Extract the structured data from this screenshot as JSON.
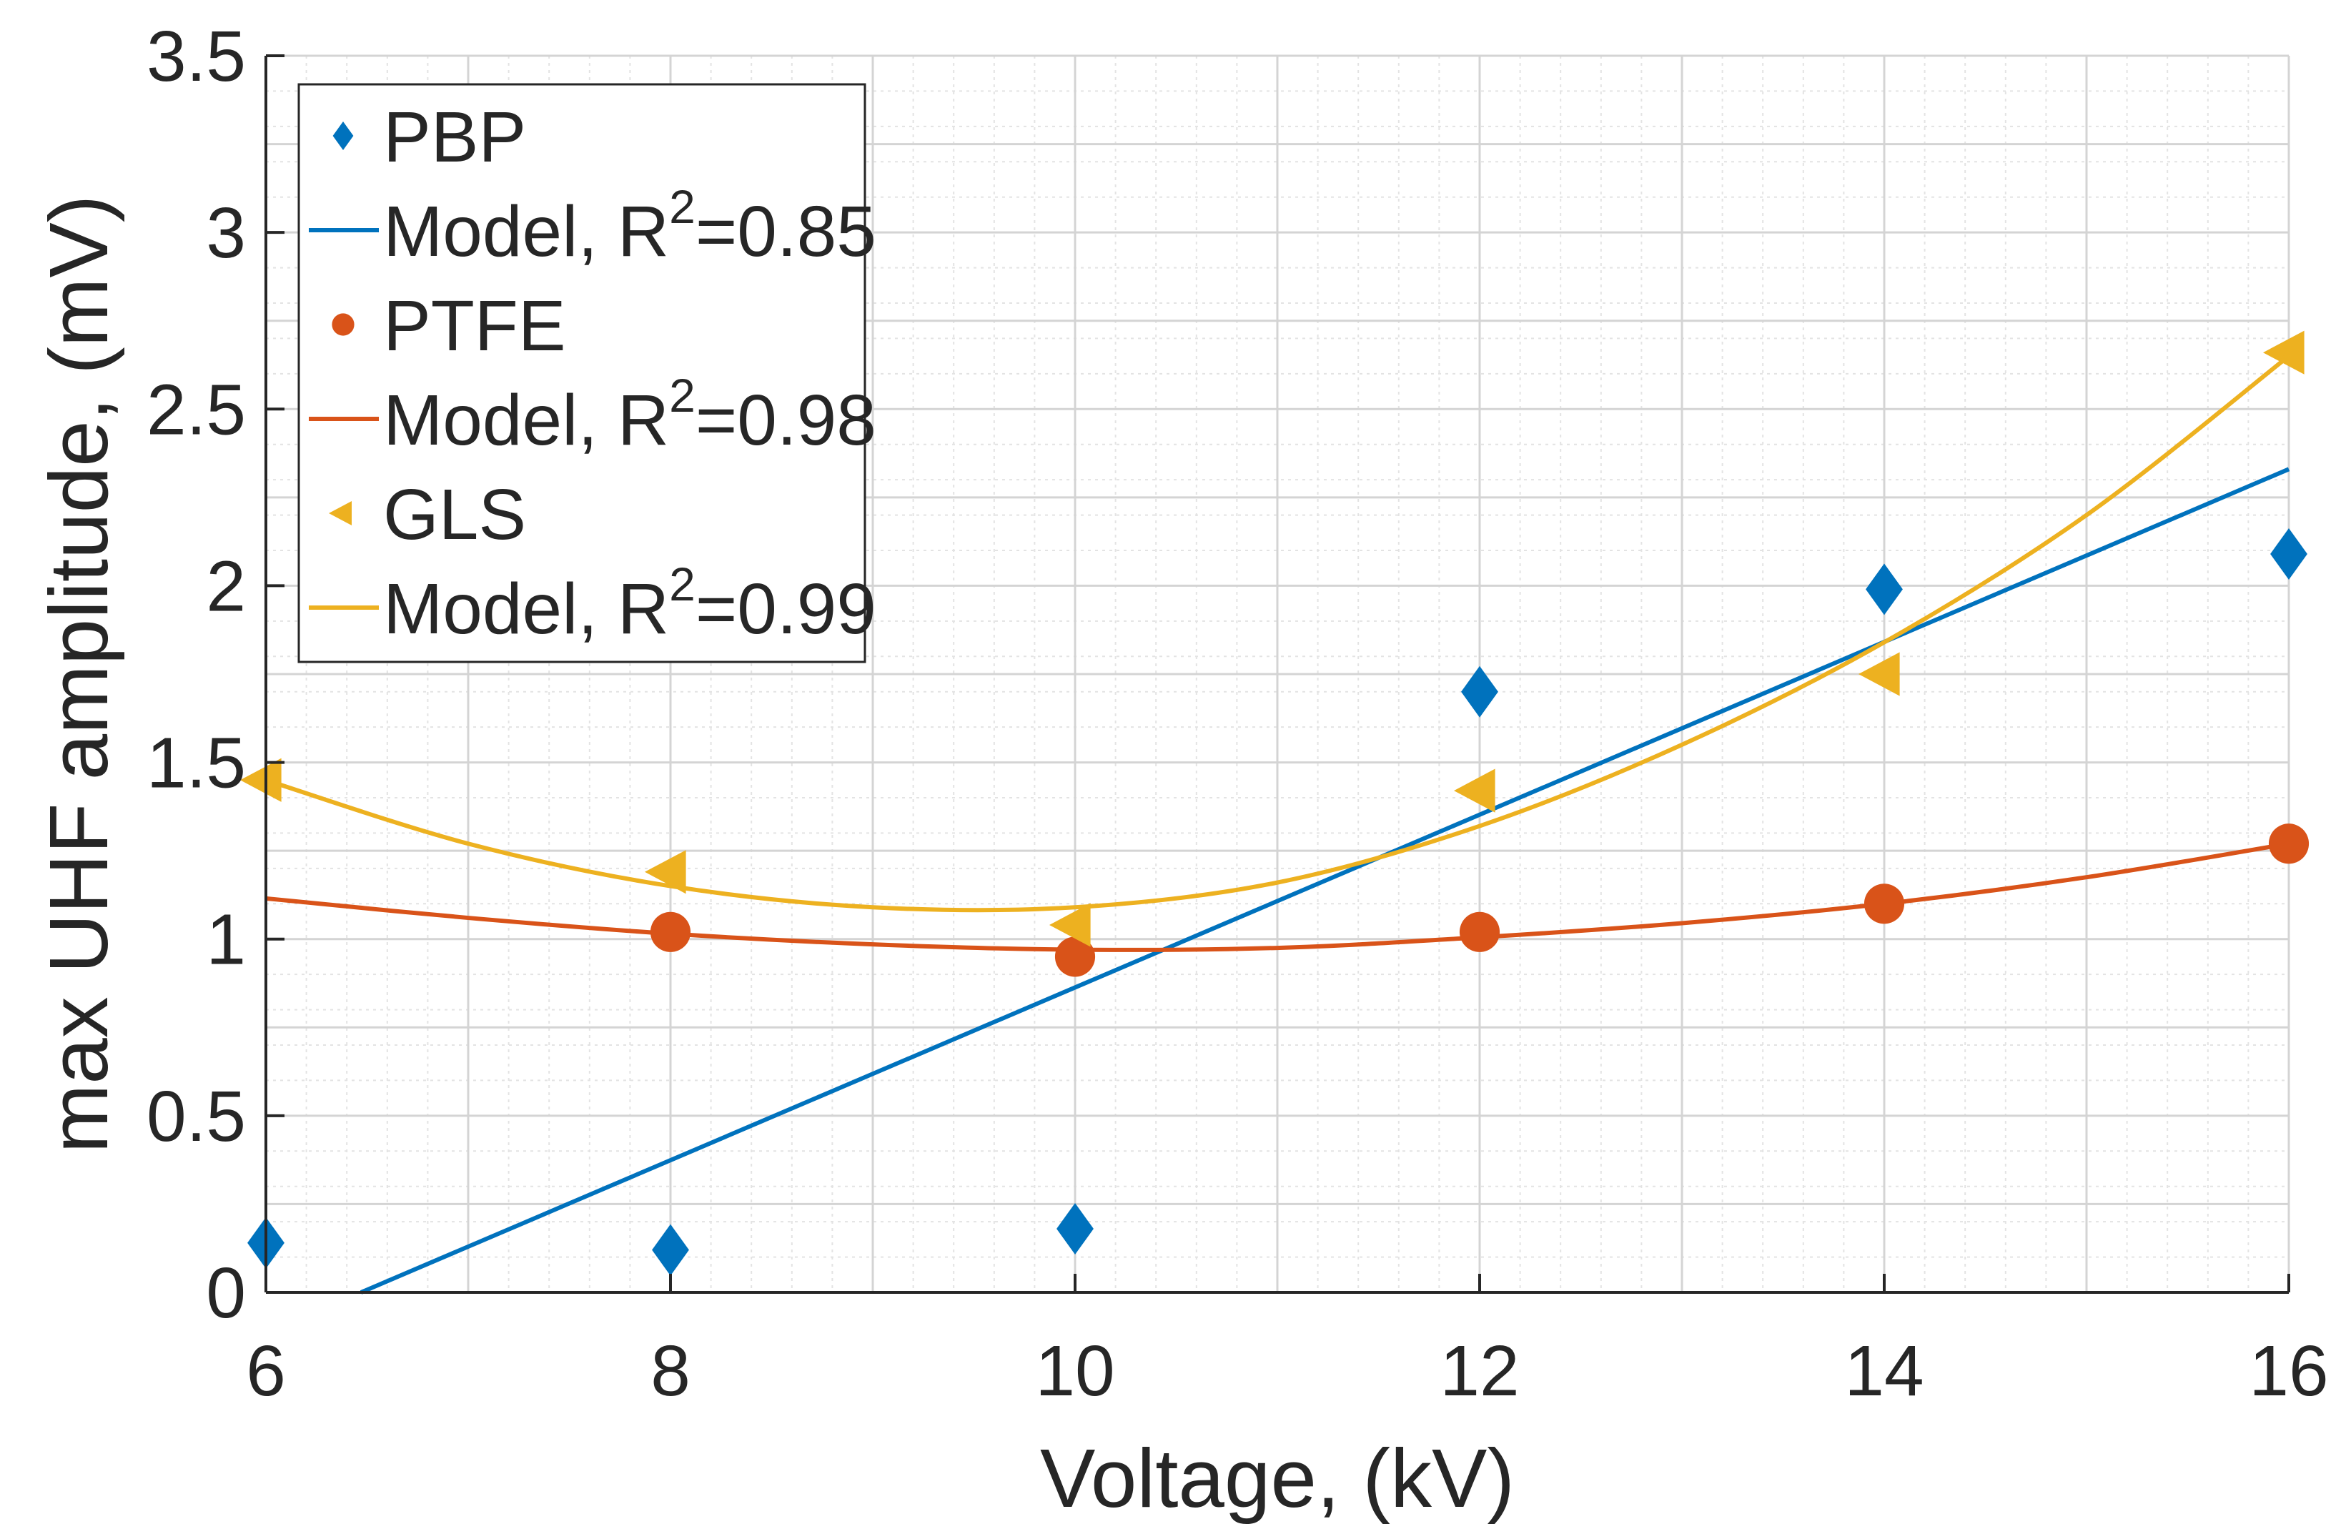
{
  "chart_data": {
    "type": "scatter",
    "title": "",
    "xlabel": "Voltage, (kV)",
    "ylabel": "max UHF amplitude, (mV)",
    "xlim": [
      6,
      16
    ],
    "ylim": [
      0,
      3.5
    ],
    "xticks": [
      6,
      8,
      10,
      12,
      14,
      16
    ],
    "xtick_labels": [
      "6",
      "8",
      "10",
      "12",
      "14",
      "16"
    ],
    "yticks": [
      0,
      0.5,
      1,
      1.5,
      2,
      2.5,
      3,
      3.5
    ],
    "ytick_labels": [
      "0",
      "0.5",
      "1",
      "1.5",
      "2",
      "2.5",
      "3",
      "3.5"
    ],
    "grid": true,
    "minor_grid": true,
    "legend_position": "top-left",
    "series": [
      {
        "name": "PBP",
        "kind": "scatter",
        "marker": "diamond",
        "color": "#0072BD",
        "x": [
          6,
          8,
          10,
          12,
          14,
          16
        ],
        "y": [
          0.14,
          0.12,
          0.18,
          1.7,
          1.99,
          2.09
        ]
      },
      {
        "name": "Model, R2=0.85",
        "legend_main": "Model, R",
        "legend_sup": "2",
        "legend_tail": "=0.85",
        "kind": "line",
        "color": "#0072BD",
        "x": [
          6.47,
          16
        ],
        "y": [
          0,
          2.33
        ]
      },
      {
        "name": "PTFE",
        "kind": "scatter",
        "marker": "circle",
        "color": "#D95319",
        "x": [
          8,
          10,
          12,
          14,
          16
        ],
        "y": [
          1.02,
          0.95,
          1.02,
          1.1,
          1.27
        ]
      },
      {
        "name": "Model, R2=0.98",
        "legend_main": "Model, R",
        "legend_sup": "2",
        "legend_tail": "=0.98",
        "kind": "line",
        "color": "#D95319",
        "x": [
          6,
          7,
          8,
          9,
          10,
          11,
          12,
          13,
          14,
          15,
          16
        ],
        "y": [
          1.115,
          1.06,
          1.015,
          0.985,
          0.97,
          0.975,
          1.005,
          1.045,
          1.1,
          1.175,
          1.27
        ]
      },
      {
        "name": "GLS",
        "kind": "scatter",
        "marker": "triangle-left",
        "color": "#EDB120",
        "x": [
          6,
          8,
          10,
          12,
          14,
          16
        ],
        "y": [
          1.45,
          1.19,
          1.04,
          1.42,
          1.75,
          2.66
        ]
      },
      {
        "name": "Model, R2=0.99",
        "legend_main": "Model, R",
        "legend_sup": "2",
        "legend_tail": "=0.99",
        "kind": "line",
        "color": "#EDB120",
        "x": [
          6,
          7,
          8,
          9,
          10,
          11,
          12,
          13,
          14,
          15,
          16
        ],
        "y": [
          1.45,
          1.27,
          1.15,
          1.09,
          1.09,
          1.16,
          1.32,
          1.55,
          1.84,
          2.2,
          2.65
        ]
      }
    ]
  }
}
